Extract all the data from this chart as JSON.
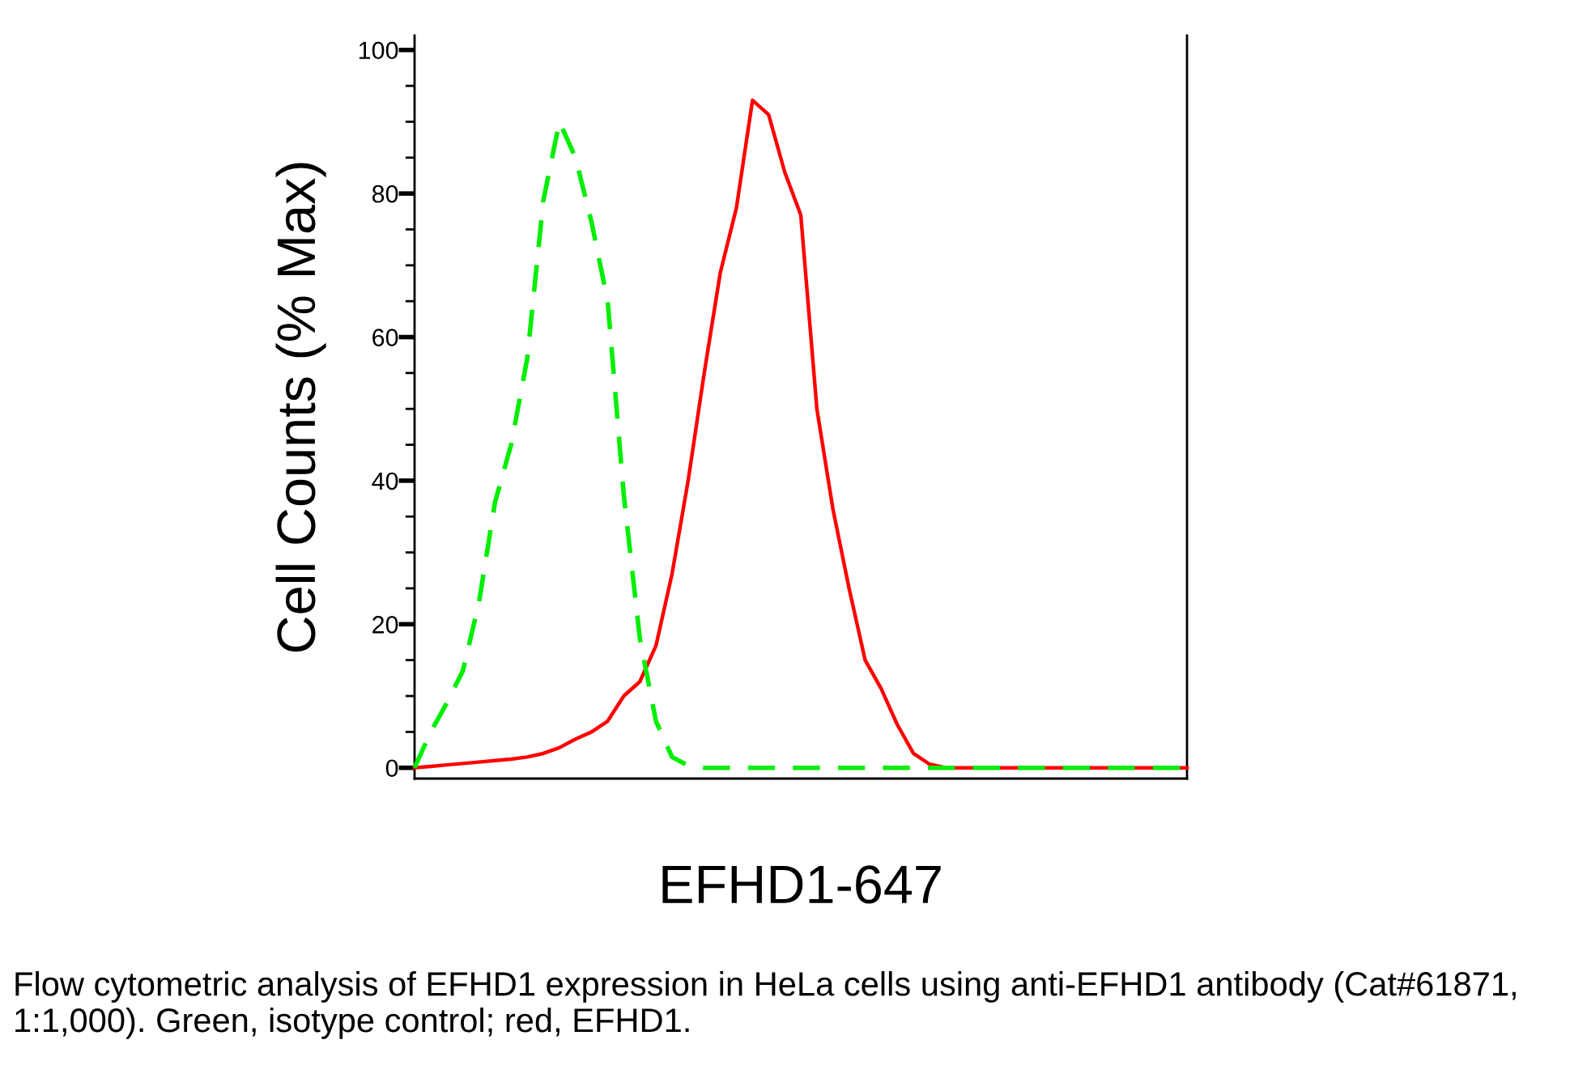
{
  "chart_data": {
    "type": "line",
    "xlabel": "EFHD1-647",
    "ylabel": "Cell Counts (% Max)",
    "annotations": [
      "Flow cytometric analysis of EFHD1 expression in HeLa cells using anti-EFHD1 antibody (Cat#61871, 1:1,000). Green, isotype control; red, EFHD1."
    ],
    "categories": [
      null,
      null,
      null,
      null,
      null,
      null,
      null,
      null,
      null,
      null,
      null,
      null,
      null,
      null,
      null,
      null,
      null,
      null,
      null,
      null,
      null,
      null,
      null,
      null,
      null,
      null,
      null,
      null,
      null,
      null,
      null,
      null,
      null,
      null,
      null,
      null,
      null,
      null,
      null,
      null,
      null,
      null,
      null,
      null,
      null,
      null,
      null,
      null,
      null
    ],
    "series": [
      {
        "color": "#00ee00",
        "line_style": "dashed",
        "values": [
          0,
          5,
          9,
          13.5,
          23,
          37,
          45,
          57,
          79,
          90,
          85,
          76,
          65,
          38,
          18,
          6.5,
          1.5,
          0.3,
          0,
          0,
          0,
          0,
          0,
          0,
          0,
          0,
          0,
          0,
          0,
          0,
          0,
          0,
          0,
          0,
          0,
          0,
          0,
          0,
          0,
          0,
          0,
          0,
          0,
          0,
          0,
          0,
          0,
          0,
          0
        ]
      },
      {
        "color": "#ff0000",
        "line_style": "solid",
        "values": [
          0,
          0.2,
          0.4,
          0.6,
          0.8,
          1,
          1.2,
          1.5,
          2,
          2.8,
          4,
          5,
          6.5,
          10,
          12,
          17,
          27,
          40,
          55,
          69,
          78,
          93,
          91,
          83,
          77,
          50,
          36,
          25,
          15,
          11,
          6,
          2,
          0.5,
          0,
          0,
          0,
          0,
          0,
          0,
          0,
          0,
          0,
          0,
          0,
          0,
          0,
          0,
          0,
          0
        ]
      }
    ],
    "ylim": [
      -1.5,
      102
    ],
    "yticks": [
      0,
      {
        "value": 5,
        "label": null
      },
      {
        "value": 10,
        "label": null
      },
      {
        "value": 15,
        "label": null
      },
      20,
      {
        "value": 25,
        "label": null
      },
      {
        "value": 30,
        "label": null
      },
      {
        "value": 35,
        "label": null
      },
      40,
      {
        "value": 45,
        "label": null
      },
      {
        "value": 50,
        "label": null
      },
      {
        "value": 55,
        "label": null
      },
      60,
      {
        "value": 65,
        "label": null
      },
      {
        "value": 70,
        "label": null
      },
      {
        "value": 75,
        "label": null
      },
      80,
      {
        "value": 85,
        "label": null
      },
      {
        "value": 90,
        "label": null
      },
      {
        "value": 95,
        "label": null
      },
      100
    ],
    "tick_labels": "y",
    "grid": false,
    "legend": false,
    "marker": "none"
  }
}
